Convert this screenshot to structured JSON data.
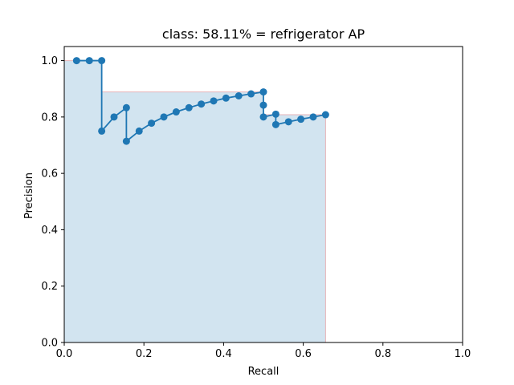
{
  "chart_data": {
    "type": "line",
    "title": "class: 58.11% = refrigerator AP",
    "xlabel": "Recall",
    "ylabel": "Precision",
    "xlim": [
      0,
      1
    ],
    "ylim": [
      0,
      1.05
    ],
    "xticks": [
      0.0,
      0.2,
      0.4,
      0.6,
      0.8,
      1.0
    ],
    "yticks": [
      0.0,
      0.2,
      0.4,
      0.6,
      0.8,
      1.0
    ],
    "xtick_labels": [
      "0.0",
      "0.2",
      "0.4",
      "0.6",
      "0.8",
      "1.0"
    ],
    "ytick_labels": [
      "0.0",
      "0.2",
      "0.4",
      "0.6",
      "0.8",
      "1.0"
    ],
    "grid": false,
    "series": [
      {
        "line_color": "#1f77b4",
        "x": [
          0.031,
          0.063,
          0.094,
          0.094,
          0.125,
          0.156,
          0.156,
          0.188,
          0.219,
          0.25,
          0.281,
          0.313,
          0.344,
          0.375,
          0.406,
          0.438,
          0.469,
          0.5,
          0.5,
          0.5,
          0.531,
          0.531,
          0.563,
          0.594,
          0.625,
          0.656
        ],
        "y": [
          1.0,
          1.0,
          1.0,
          0.75,
          0.8,
          0.833,
          0.714,
          0.75,
          0.778,
          0.8,
          0.818,
          0.833,
          0.846,
          0.857,
          0.867,
          0.875,
          0.882,
          0.889,
          0.842,
          0.8,
          0.81,
          0.773,
          0.783,
          0.792,
          0.8,
          0.808
        ]
      }
    ],
    "interpolated_precision": {
      "fill_color": "#1f77b4",
      "edge_color": "#e6b3b8",
      "x": [
        0.0,
        0.094,
        0.094,
        0.5,
        0.5,
        0.656,
        0.656
      ],
      "y": [
        1.0,
        1.0,
        0.889,
        0.889,
        0.808,
        0.808,
        0.0
      ]
    }
  }
}
